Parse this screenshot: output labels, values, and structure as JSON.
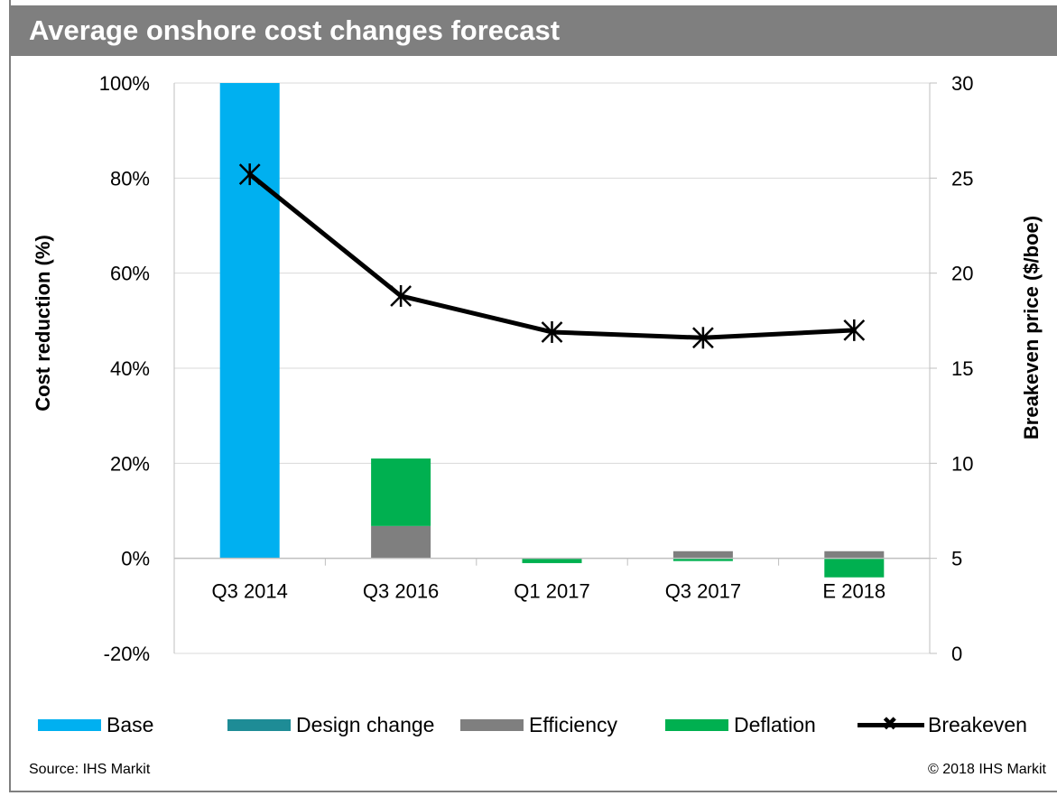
{
  "header": {
    "title": "Average onshore cost changes forecast"
  },
  "footer": {
    "source": "Source: IHS Markit",
    "copyright": "© 2018 IHS Markit"
  },
  "colors": {
    "base": "#00B0F0",
    "design_change": "#1E8C96",
    "efficiency": "#7F7F7F",
    "deflation": "#00B050",
    "breakeven": "#000000",
    "title_bar": "#7F7F7F"
  },
  "chart_data": {
    "type": "bar",
    "title": "Average onshore cost changes forecast",
    "categories": [
      "Q3 2014",
      "Q3 2016",
      "Q1 2017",
      "Q3 2017",
      "E 2018"
    ],
    "ylabel": "Cost reduction (%)",
    "y2label": "Breakeven price ($/boe)",
    "ylim": [
      -20,
      100
    ],
    "y2lim": [
      0,
      30
    ],
    "yticks": [
      "100%",
      "80%",
      "60%",
      "40%",
      "20%",
      "0%",
      "-20%"
    ],
    "y2ticks": [
      "30",
      "25",
      "20",
      "15",
      "10",
      "5",
      "0"
    ],
    "stacked": true,
    "series": [
      {
        "name": "Base",
        "kind": "bar",
        "values": [
          100,
          0,
          0,
          0,
          0
        ]
      },
      {
        "name": "Design change",
        "kind": "bar",
        "values": [
          0,
          0,
          0,
          0,
          0
        ]
      },
      {
        "name": "Efficiency",
        "kind": "bar",
        "values": [
          0,
          6.8,
          0,
          1.5,
          1.5
        ]
      },
      {
        "name": "Deflation",
        "kind": "bar",
        "values": [
          0,
          14.2,
          -1,
          -0.5,
          -4
        ]
      },
      {
        "name": "Breakeven",
        "kind": "line",
        "axis": "right",
        "values": [
          25.2,
          18.8,
          16.9,
          16.6,
          17.0
        ]
      }
    ],
    "grid": true,
    "legend": "bottom"
  }
}
